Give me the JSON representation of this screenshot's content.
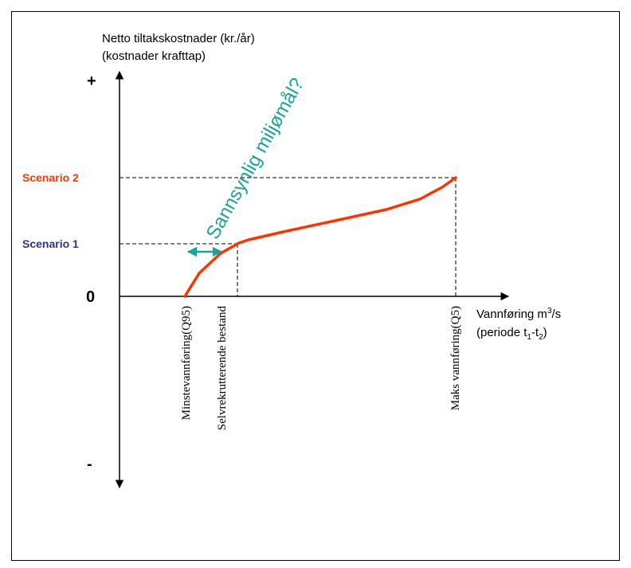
{
  "y_axis": {
    "title_line1": "Netto tiltakskostnader (kr./år)",
    "title_line2": "(kostnader krafttap)",
    "plus_label": "+",
    "zero_label": "0",
    "minus_label": "-"
  },
  "x_axis": {
    "title_base": "Vannføring m",
    "title_sup": "3",
    "title_unit": "/s",
    "period_open": "(periode t",
    "period_sub1": "1",
    "period_dash": "-t",
    "period_sub2": "2",
    "period_close": ")"
  },
  "scenarios": {
    "scenario1": {
      "label": "Scenario 1",
      "color": "#2e3192"
    },
    "scenario2": {
      "label": "Scenario 2",
      "color": "#ff3300"
    }
  },
  "markers": {
    "q95": "Minstevannføring(Q95)",
    "self": "Selvrekrutterende bestand",
    "q5": "Maks vannføring(Q5)"
  },
  "annotation": {
    "text": "Sannsynlig miljømål?",
    "color": "#1aa39a"
  },
  "colors": {
    "curve": "#ff3300",
    "arrow": "#1aa39a",
    "axis": "#000000"
  }
}
